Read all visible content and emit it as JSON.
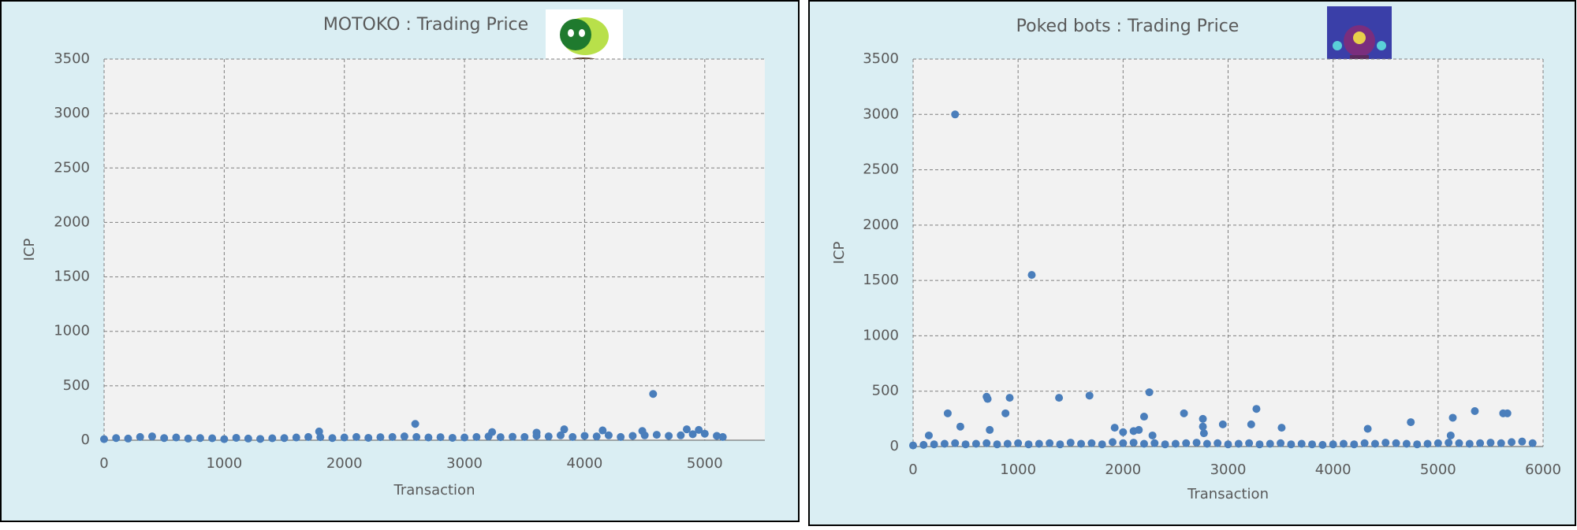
{
  "chart_data": [
    {
      "type": "scatter",
      "title": "MOTOKO  :  Trading Price",
      "x_label": "Transaction",
      "y_label": "ICP",
      "color": "#4a7ebb",
      "grid": true,
      "xlim": [
        0,
        5500
      ],
      "xticks": [
        0,
        1000,
        2000,
        3000,
        4000,
        5000
      ],
      "ylim": [
        0,
        3500
      ],
      "yticks": [
        0,
        500,
        1000,
        1500,
        2000,
        2500,
        3000,
        3500
      ],
      "x": [
        0,
        100,
        200,
        300,
        400,
        500,
        600,
        700,
        800,
        900,
        1000,
        1100,
        1200,
        1300,
        1400,
        1500,
        1600,
        1700,
        1800,
        1900,
        2000,
        2100,
        2200,
        2300,
        2400,
        2500,
        2600,
        2700,
        2800,
        2900,
        3000,
        3100,
        3200,
        3300,
        3400,
        3500,
        3600,
        3700,
        3800,
        3900,
        4000,
        4100,
        4200,
        4300,
        4400,
        4500,
        4600,
        4700,
        4800,
        4900,
        5000,
        5100,
        5150,
        4570,
        2590,
        1790,
        3830,
        4150,
        4850,
        3600,
        3230,
        4950,
        4480
      ],
      "values": [
        10,
        20,
        15,
        30,
        35,
        20,
        25,
        15,
        20,
        18,
        10,
        22,
        15,
        12,
        18,
        20,
        25,
        30,
        28,
        20,
        25,
        30,
        22,
        28,
        30,
        35,
        30,
        25,
        28,
        22,
        25,
        30,
        35,
        28,
        32,
        30,
        40,
        35,
        45,
        30,
        40,
        35,
        45,
        30,
        40,
        45,
        50,
        40,
        45,
        55,
        60,
        40,
        30,
        425,
        150,
        80,
        100,
        90,
        100,
        70,
        75,
        95,
        85
      ]
    },
    {
      "type": "scatter",
      "title": "Poked bots  :  Trading Price",
      "x_label": "Transaction",
      "y_label": "ICP",
      "color": "#4a7ebb",
      "grid": true,
      "xlim": [
        0,
        6000
      ],
      "xticks": [
        0,
        1000,
        2000,
        3000,
        4000,
        5000,
        6000
      ],
      "ylim": [
        0,
        3500
      ],
      "yticks": [
        0,
        500,
        1000,
        1500,
        2000,
        2500,
        3000,
        3500
      ],
      "x": [
        0,
        100,
        200,
        300,
        400,
        500,
        600,
        700,
        800,
        900,
        1000,
        1100,
        1200,
        1300,
        1400,
        1500,
        1600,
        1700,
        1800,
        1900,
        2000,
        2100,
        2200,
        2300,
        2400,
        2500,
        2600,
        2700,
        2800,
        2900,
        3000,
        3100,
        3200,
        3300,
        3400,
        3500,
        3600,
        3700,
        3800,
        3900,
        4000,
        4100,
        4200,
        4300,
        4400,
        4500,
        4600,
        4700,
        4800,
        4900,
        5000,
        5100,
        5200,
        5300,
        5400,
        5500,
        5600,
        5700,
        5800,
        5900,
        400,
        1130,
        2250,
        330,
        700,
        710,
        920,
        1390,
        1680,
        2200,
        2580,
        2760,
        2760,
        3270,
        3220,
        2950,
        4330,
        4740,
        5140,
        5350,
        5620,
        5660,
        880,
        730,
        1920,
        2000,
        2100,
        2150,
        3510,
        450,
        5120,
        150,
        2770,
        2280
      ],
      "values": [
        10,
        15,
        20,
        25,
        30,
        20,
        25,
        30,
        20,
        25,
        30,
        20,
        25,
        30,
        20,
        35,
        25,
        30,
        20,
        40,
        30,
        35,
        25,
        30,
        20,
        25,
        30,
        35,
        25,
        30,
        20,
        25,
        30,
        20,
        25,
        30,
        20,
        25,
        20,
        15,
        20,
        25,
        20,
        30,
        25,
        35,
        30,
        25,
        20,
        25,
        30,
        35,
        30,
        25,
        30,
        35,
        30,
        40,
        45,
        30,
        3000,
        1550,
        490,
        300,
        450,
        430,
        440,
        440,
        460,
        270,
        300,
        250,
        180,
        340,
        200,
        200,
        160,
        220,
        260,
        320,
        300,
        300,
        300,
        150,
        170,
        130,
        140,
        150,
        170,
        180,
        100,
        100,
        120,
        100
      ]
    }
  ]
}
